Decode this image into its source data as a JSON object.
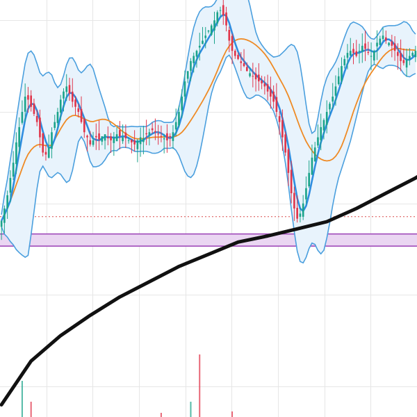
{
  "chart_data": {
    "type": "candlestick",
    "x_grid_count": 8,
    "y_grid": [
      330,
      420,
      510,
      600,
      690
    ],
    "ylim": [
      300,
      710
    ],
    "colors": {
      "up": "#1aa38a",
      "down": "#e0344a",
      "bb": "#4a9fde",
      "bb_fill": "#e8f3fc",
      "fast_ma": "#2f8de0",
      "slow_ma": "#ef8a24",
      "long_ma": "#111111",
      "zone_fill": "#ead6f2",
      "zone_border": "#9a3fb5",
      "dotted": "#d94a4a"
    },
    "support_zone": {
      "low": 468,
      "high": 480
    },
    "dotted_level": 497,
    "closes": [
      493.0,
      505.0,
      518.0,
      535.0,
      550.0,
      570.0,
      585.0,
      600.0,
      615.0,
      612.0,
      605.0,
      598.0,
      590.0,
      575.0,
      560.0,
      558.0,
      565.0,
      580.0,
      590.0,
      600.0,
      612.0,
      620.0,
      625.0,
      618.0,
      610.0,
      605.0,
      600.0,
      590.0,
      580.0,
      575.0,
      568.0,
      572.0,
      575.0,
      573.0,
      576.0,
      578.0,
      574.0,
      572.0,
      575.0,
      578.0,
      576.0,
      575.0,
      574.0,
      572.0,
      570.0,
      568.0,
      572.0,
      575.0,
      574.0,
      578.0,
      580.0,
      582.0,
      580.0,
      578.0,
      576.0,
      574.0,
      572.0,
      575.0,
      580.0,
      590.0,
      600.0,
      615.0,
      630.0,
      640.0,
      650.0,
      655.0,
      660.0,
      665.0,
      670.0,
      675.0,
      680.0,
      685.0,
      690.0,
      698.0,
      700.0,
      695.0,
      685.0,
      670.0,
      660.0,
      655.0,
      652.0,
      648.0,
      645.0,
      640.0,
      638.0,
      635.0,
      632.0,
      630.0,
      628.0,
      625.0,
      620.0,
      615.0,
      610.0,
      600.0,
      590.0,
      575.0,
      560.0,
      540.0,
      520.0,
      505.0,
      495.0,
      500.0,
      510.0,
      525.0,
      540.0,
      555.0,
      565.0,
      575.0,
      585.0,
      592.0,
      600.0,
      608.0,
      615.0,
      625.0,
      635.0,
      645.0,
      652.0,
      658.0,
      660.0,
      658.0,
      655.0,
      660.0,
      665.0,
      662.0,
      658.0,
      655.0,
      660.0,
      668.0,
      672.0,
      675.0,
      670.0,
      668.0,
      665.0,
      660.0,
      655.0,
      650.0,
      648.0,
      652.0,
      655.0,
      658.0,
      660.0
    ],
    "long_ma": {
      "x_index": [
        0,
        10,
        20,
        30,
        40,
        50,
        60,
        70,
        80,
        90,
        100,
        110,
        120,
        130,
        140,
        149
      ],
      "values": [
        312.0,
        355.0,
        380.0,
        400.0,
        418.0,
        433.0,
        448.0,
        460.0,
        472.0,
        478.0,
        485.0,
        492.0,
        505.0,
        520.0,
        535.0,
        552.0
      ]
    },
    "volume": {
      "bars": [
        {
          "index": 7,
          "value": 52,
          "color": "#1aa38a"
        },
        {
          "index": 10,
          "value": 22,
          "color": "#e0344a"
        },
        {
          "index": 64,
          "value": 22,
          "color": "#1aa38a"
        },
        {
          "index": 67,
          "value": 90,
          "color": "#e0344a"
        },
        {
          "index": 54,
          "value": 6,
          "color": "#e0344a"
        },
        {
          "index": 78,
          "value": 8,
          "color": "#e0344a"
        }
      ]
    }
  }
}
